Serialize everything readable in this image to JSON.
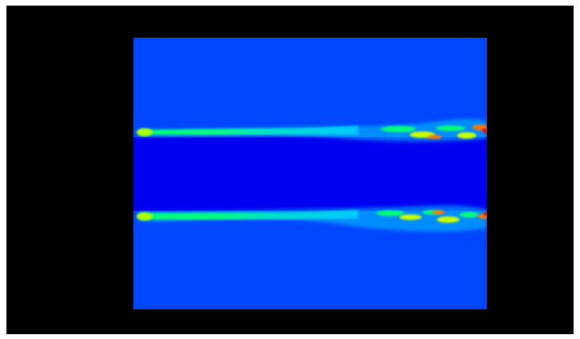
{
  "view": {
    "background_color": "#000000",
    "field_colormap": [
      "#0000ff",
      "#0046ff",
      "#00c8ff",
      "#00ff78",
      "#c8ff00",
      "#ff7800",
      "#ff0000"
    ],
    "freestream_color": "#0046ff",
    "core_color": "#0000f0",
    "layers": [
      {
        "name": "upper-shear-layer"
      },
      {
        "name": "lower-shear-layer"
      }
    ]
  }
}
